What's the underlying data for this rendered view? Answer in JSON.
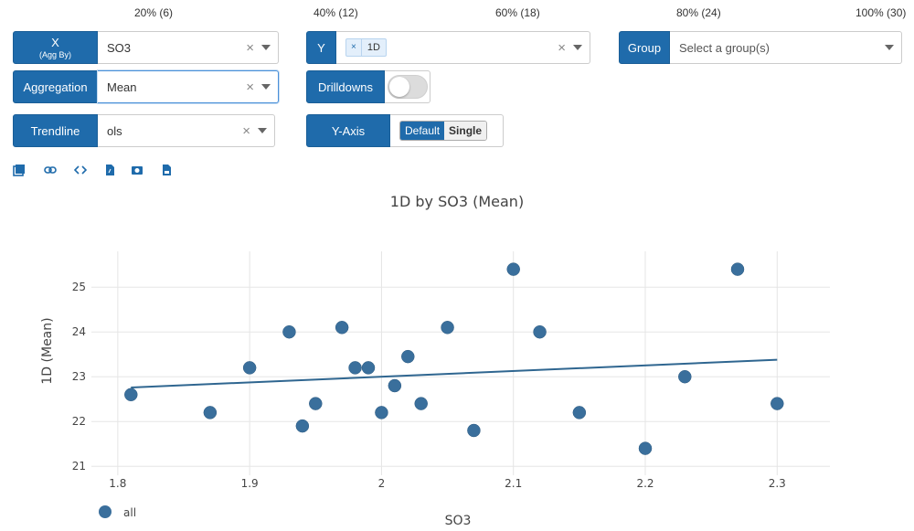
{
  "percent_ticks": [
    "20% (6)",
    "40% (12)",
    "60% (18)",
    "80% (24)",
    "100% (30)"
  ],
  "controls": {
    "x": {
      "label": "X",
      "sublabel": "(Agg By)",
      "value": "SO3"
    },
    "y": {
      "label": "Y",
      "chip": "1D",
      "chip_remove": "×"
    },
    "group": {
      "label": "Group",
      "placeholder": "Select a group(s)"
    },
    "aggregation": {
      "label": "Aggregation",
      "value": "Mean"
    },
    "drilldowns": {
      "label": "Drilldowns",
      "enabled": false
    },
    "trendline": {
      "label": "Trendline",
      "value": "ols"
    },
    "yaxis": {
      "label": "Y-Axis",
      "options": [
        "Default",
        "Single"
      ],
      "selected": "Default"
    },
    "clear_symbol": "×"
  },
  "toolbar_icons": [
    "popout-icon",
    "link-icon",
    "code-icon",
    "export-file-icon",
    "camera-icon",
    "image-file-icon"
  ],
  "chart": {
    "title": "1D by SO3 (Mean)"
  },
  "chart_data": {
    "type": "scatter",
    "title": "1D by SO3 (Mean)",
    "xlabel": "SO3",
    "ylabel": "1D (Mean)",
    "xlim": [
      1.78,
      2.34
    ],
    "ylim": [
      20.8,
      25.8
    ],
    "x_ticks": [
      "1.8",
      "1.9",
      "2",
      "2.1",
      "2.2",
      "2.3"
    ],
    "y_ticks": [
      "21",
      "22",
      "23",
      "24",
      "25"
    ],
    "grid": true,
    "legend": {
      "placement": "bottom-left",
      "entries": [
        "all"
      ]
    },
    "series": [
      {
        "name": "all",
        "color": "#3a6f9c",
        "points": [
          [
            1.81,
            22.6
          ],
          [
            1.87,
            22.2
          ],
          [
            1.9,
            23.2
          ],
          [
            1.93,
            24.0
          ],
          [
            1.94,
            21.9
          ],
          [
            1.95,
            22.4
          ],
          [
            1.97,
            24.1
          ],
          [
            1.98,
            23.2
          ],
          [
            1.99,
            23.2
          ],
          [
            2.0,
            22.2
          ],
          [
            2.01,
            22.8
          ],
          [
            2.02,
            23.45
          ],
          [
            2.03,
            22.4
          ],
          [
            2.05,
            24.1
          ],
          [
            2.07,
            21.8
          ],
          [
            2.1,
            25.4
          ],
          [
            2.12,
            24.0
          ],
          [
            2.15,
            22.2
          ],
          [
            2.2,
            21.4
          ],
          [
            2.23,
            23.0
          ],
          [
            2.27,
            25.4
          ],
          [
            2.3,
            22.4
          ]
        ]
      }
    ],
    "trendline": {
      "type": "ols",
      "color": "#2f6690",
      "points": [
        [
          1.81,
          22.76
        ],
        [
          2.3,
          23.38
        ]
      ]
    }
  }
}
